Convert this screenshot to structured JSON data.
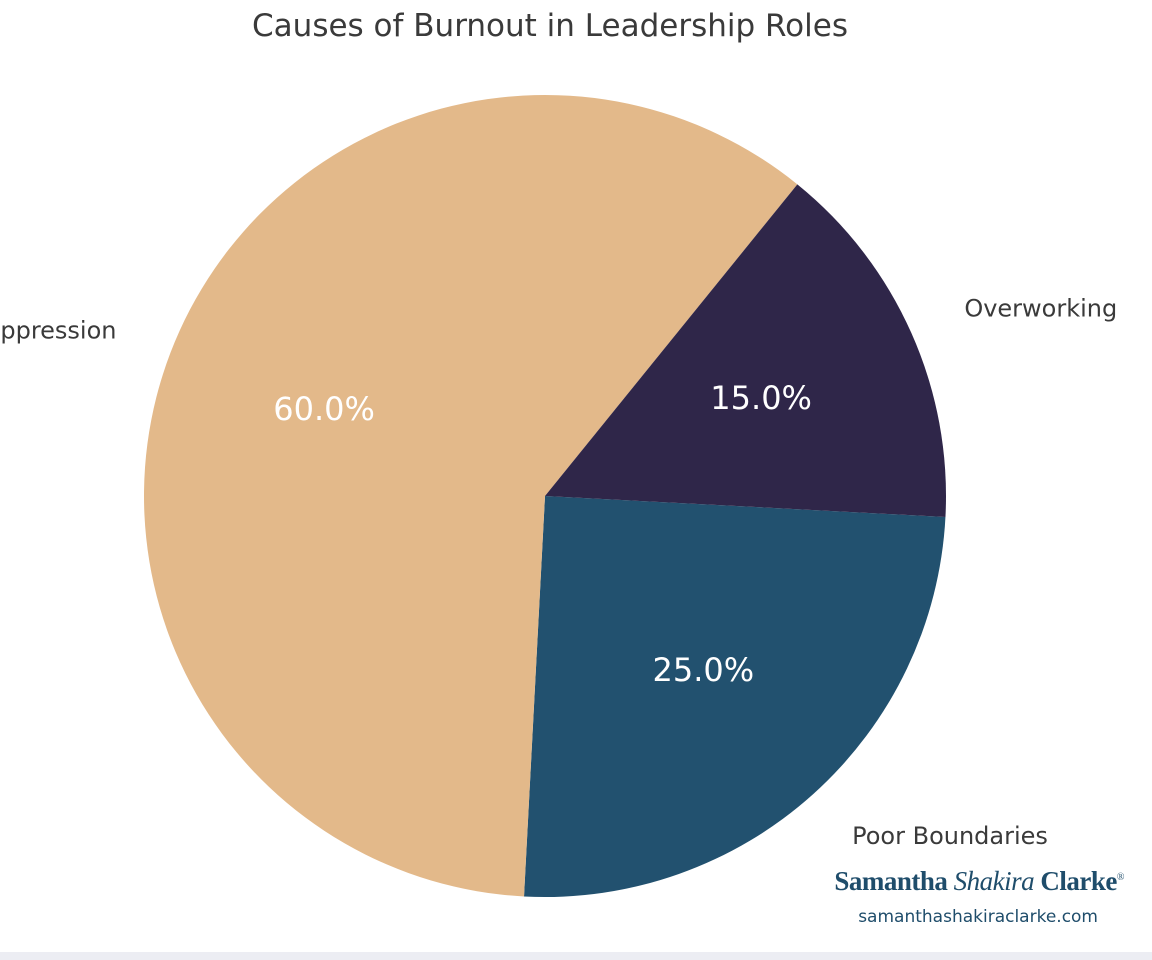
{
  "chart_data": {
    "type": "pie",
    "title": "Causes of Burnout in Leadership Roles",
    "slices": [
      {
        "label": "Poor Boundaries",
        "value": 25.0,
        "display": "25.0%",
        "color": "#22516f"
      },
      {
        "label": "Emotional Suppression",
        "value": 60.0,
        "display": "60.0%",
        "color": "#e3b98a"
      },
      {
        "label": "Overworking",
        "value": 15.0,
        "display": "15.0%",
        "color": "#2f2649"
      }
    ]
  },
  "brand": {
    "first": "Samantha",
    "middle": "Shakira",
    "last": "Clarke",
    "mark": "®",
    "url": "samanthashakiraclarke.com"
  },
  "colors": {
    "brand": "#1f4d6b",
    "text": "#3a3a3a"
  }
}
